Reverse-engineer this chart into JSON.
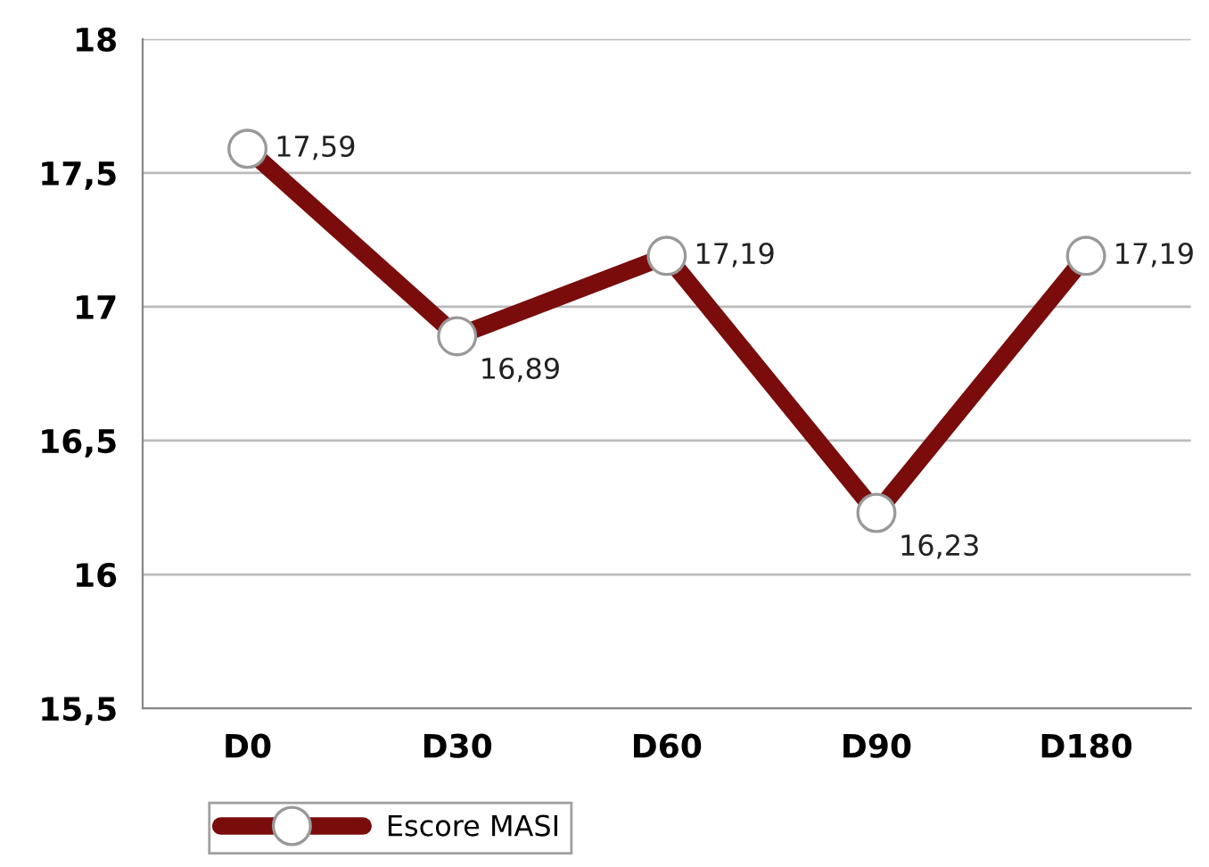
{
  "chart_data": {
    "type": "line",
    "categories": [
      "D0",
      "D30",
      "D60",
      "D90",
      "D180"
    ],
    "series": [
      {
        "name": "Escore MASI",
        "color": "#7a0c0c",
        "values": [
          17.59,
          16.89,
          17.19,
          16.23,
          17.19
        ],
        "value_labels": [
          "17,59",
          "16,89",
          "17,19",
          "16,23",
          "17,19"
        ]
      }
    ],
    "ylim": [
      15.5,
      18
    ],
    "yticks": [
      {
        "value": 15.5,
        "label": "15,5"
      },
      16,
      {
        "value": 16.5,
        "label": "16,5"
      },
      17,
      {
        "value": 17.5,
        "label": "17,5"
      },
      18
    ],
    "grid": "y",
    "legend": "bottom left",
    "marker": "circle",
    "line_style": "solid"
  }
}
